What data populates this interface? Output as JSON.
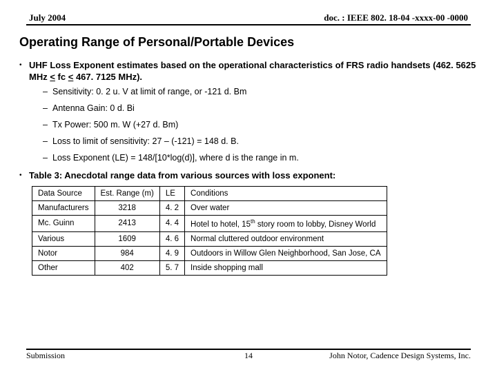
{
  "header": {
    "left": "July 2004",
    "right": "doc. : IEEE 802. 18-04 -xxxx-00 -0000"
  },
  "title": "Operating Range of Personal/Portable Devices",
  "bullet1": "UHF Loss Exponent estimates based on the operational characteristics of FRS radio handsets (462. 5625 MHz ",
  "bullet1_mid": " fc ",
  "bullet1_end": " 467. 7125 MHz).",
  "lt1": "<",
  "lt2": "<",
  "sub": {
    "s1": "Sensitivity: 0. 2 u. V at limit of range, or -121 d. Bm",
    "s2": "Antenna Gain: 0 d. Bi",
    "s3": "Tx Power: 500 m. W (+27 d. Bm)",
    "s4": "Loss to limit of sensitivity: 27 – (-121) = 148 d. B.",
    "s5": "Loss Exponent (LE) = 148/[10*log(d)], where d is the range in m."
  },
  "bullet2": "Table 3: Anecdotal range data from various sources with loss exponent:",
  "table": {
    "h1": "Data Source",
    "h2": "Est. Range (m)",
    "h3": "LE",
    "h4": "Conditions",
    "r1c1": "Manufacturers",
    "r1c2": "3218",
    "r1c3": "4. 2",
    "r1c4": "Over water",
    "r2c1": "Mc. Guinn",
    "r2c2": "2413",
    "r2c3": "4. 4",
    "r2c4a": "Hotel to hotel, 15",
    "r2c4b": "th",
    "r2c4c": " story room to lobby, Disney World",
    "r3c1": "Various",
    "r3c2": "1609",
    "r3c3": "4. 6",
    "r3c4": "Normal cluttered outdoor environment",
    "r4c1": "Notor",
    "r4c2": "984",
    "r4c3": "4. 9",
    "r4c4": "Outdoors in Willow Glen Neighborhood, San Jose, CA",
    "r5c1": "Other",
    "r5c2": "402",
    "r5c3": "5. 7",
    "r5c4": "Inside shopping mall"
  },
  "footer": {
    "left": "Submission",
    "mid": "14",
    "right": "John Notor, Cadence Design Systems, Inc."
  }
}
